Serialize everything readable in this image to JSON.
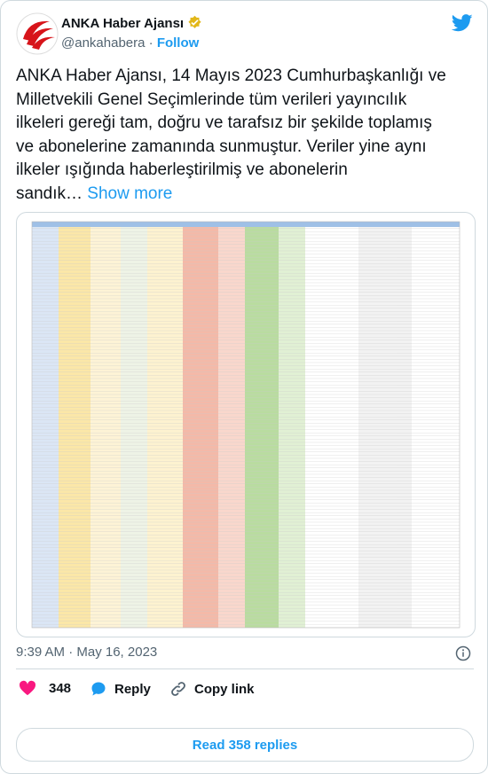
{
  "tweet": {
    "author": {
      "name": "ANKA Haber Ajansı",
      "handle": "@ankahabera",
      "follow": "Follow"
    },
    "text_lines": [
      "ANKA Haber Ajansı, 14 Mayıs 2023 Cumhurbaşkanlığı ve",
      "Milletvekili Genel Seçimlerinde tüm verileri yayıncılık",
      "ilkeleri gereği tam, doğru ve tarafsız bir şekilde toplamış",
      "ve abonelerine zamanında sunmuştur. Veriler yine aynı",
      "ilkeler ışığında haberleştirilmiş ve abonelerin",
      "sandık…"
    ],
    "show_more": "Show more",
    "timestamp": "9:39 AM · May 16, 2023",
    "likes": "348",
    "reply": "Reply",
    "copy_link": "Copy link",
    "read_replies": "Read 358 replies"
  }
}
